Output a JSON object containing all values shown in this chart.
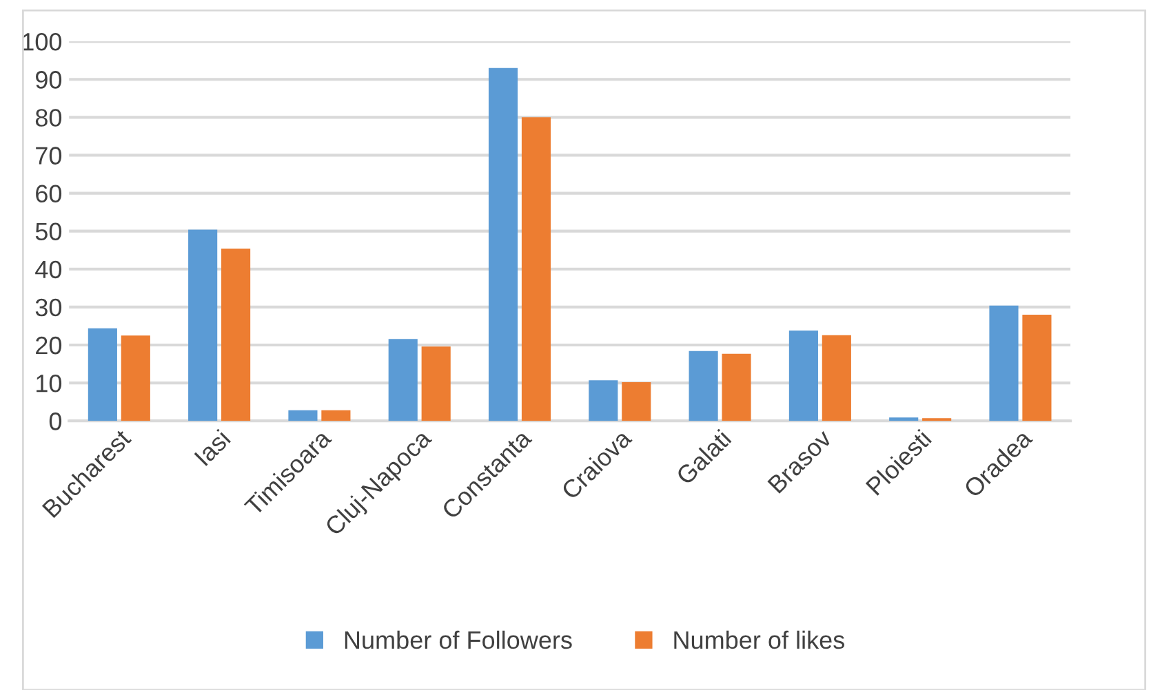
{
  "chart_data": {
    "type": "bar",
    "categories": [
      "Bucharest",
      "Iasi",
      "Timisoara",
      "Cluj-Napoca",
      "Constanta",
      "Craiova",
      "Galati",
      "Brasov",
      "Ploiesti",
      "Oradea"
    ],
    "series": [
      {
        "name": "Number of Followers",
        "color": "#5b9bd5",
        "values": [
          24.4,
          50.4,
          2.8,
          21.6,
          93.0,
          10.7,
          18.4,
          23.8,
          0.9,
          30.4
        ]
      },
      {
        "name": "Number of likes",
        "color": "#ed7d31",
        "values": [
          22.5,
          45.4,
          2.8,
          19.6,
          80.0,
          10.2,
          17.7,
          22.6,
          0.7,
          28.0
        ]
      }
    ],
    "ylim": [
      0,
      100
    ],
    "yticks": [
      0,
      10,
      20,
      30,
      40,
      50,
      60,
      70,
      80,
      90,
      100
    ],
    "grid": "y",
    "legend": "bottom"
  }
}
